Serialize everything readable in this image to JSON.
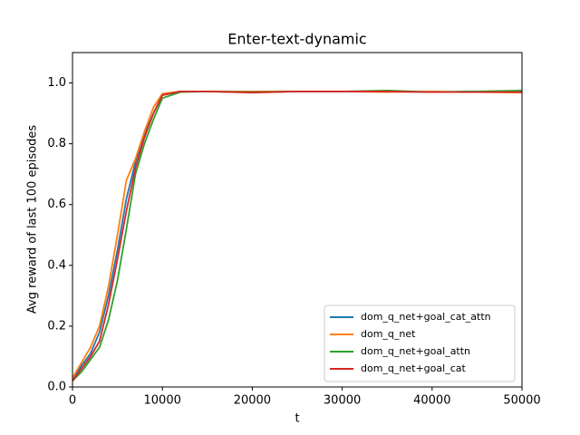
{
  "chart_data": {
    "type": "line",
    "title": "Enter-text-dynamic",
    "xlabel": "t",
    "ylabel": "Avg reward of last 100 episodes",
    "x": [
      0,
      1000,
      2000,
      3000,
      4000,
      5000,
      6000,
      7000,
      8000,
      9000,
      10000,
      12000,
      15000,
      20000,
      25000,
      30000,
      35000,
      40000,
      45000,
      50000
    ],
    "series": [
      {
        "name": "dom_q_net+goal_cat_attn",
        "color": "#1f77b4",
        "values": [
          0.02,
          0.07,
          0.11,
          0.18,
          0.3,
          0.45,
          0.62,
          0.74,
          0.83,
          0.9,
          0.96,
          0.972,
          0.972,
          0.97,
          0.972,
          0.972,
          0.972,
          0.97,
          0.972,
          0.972
        ]
      },
      {
        "name": "dom_q_net",
        "color": "#ff7f0e",
        "values": [
          0.03,
          0.08,
          0.13,
          0.2,
          0.33,
          0.5,
          0.68,
          0.75,
          0.84,
          0.92,
          0.965,
          0.972,
          0.972,
          0.972,
          0.972,
          0.972,
          0.97,
          0.972,
          0.97,
          0.968
        ]
      },
      {
        "name": "dom_q_net+goal_attn",
        "color": "#2ca02c",
        "values": [
          0.02,
          0.05,
          0.09,
          0.13,
          0.22,
          0.35,
          0.52,
          0.7,
          0.8,
          0.88,
          0.95,
          0.97,
          0.972,
          0.97,
          0.972,
          0.972,
          0.975,
          0.97,
          0.972,
          0.975
        ]
      },
      {
        "name": "dom_q_net+goal_cat",
        "color": "#d62728",
        "values": [
          0.02,
          0.06,
          0.1,
          0.15,
          0.27,
          0.42,
          0.58,
          0.72,
          0.82,
          0.9,
          0.96,
          0.972,
          0.972,
          0.968,
          0.972,
          0.972,
          0.972,
          0.97,
          0.97,
          0.97
        ]
      }
    ],
    "xlim": [
      0,
      50000
    ],
    "xticks": [
      0,
      10000,
      20000,
      30000,
      40000,
      50000
    ],
    "ylim": [
      0,
      1.1
    ],
    "yticks": [
      {
        "value": 0,
        "label": "0.0"
      },
      0.2,
      0.4,
      0.6,
      0.8,
      {
        "value": 1,
        "label": "1.0"
      }
    ],
    "legend": "lower right"
  }
}
